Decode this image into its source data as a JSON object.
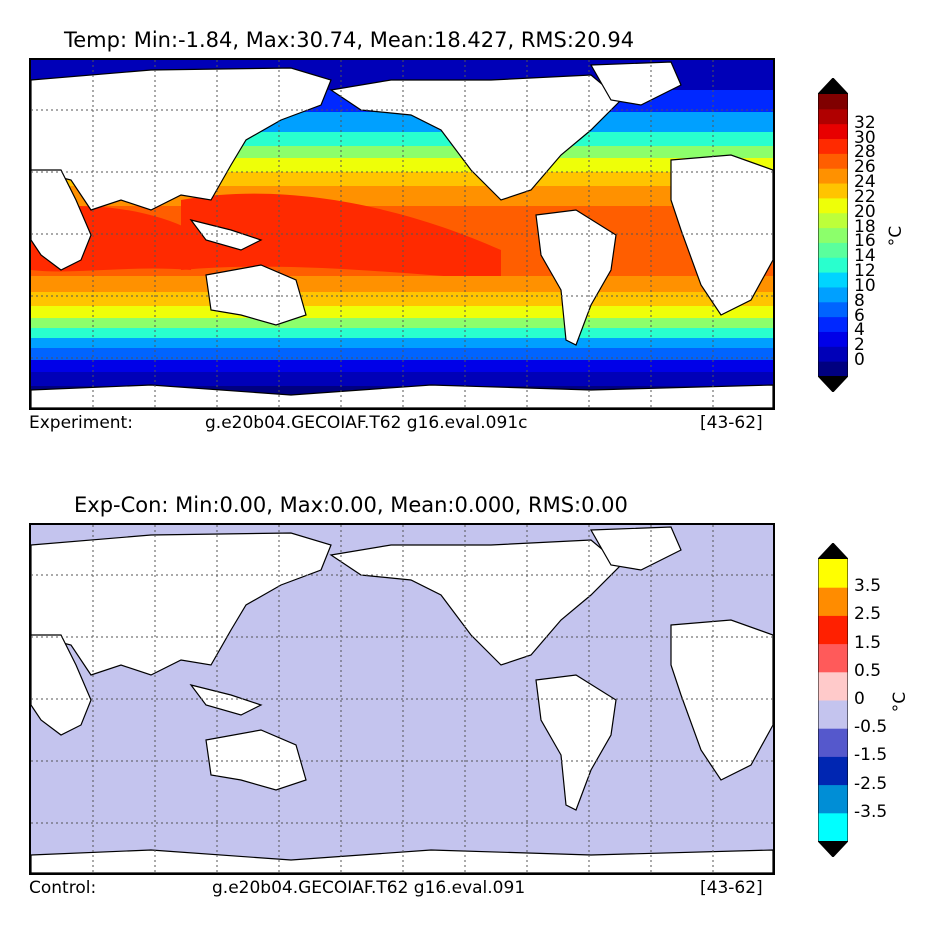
{
  "panels": [
    {
      "id": "temp",
      "title": "Temp: Min:-1.84, Max:30.74, Mean:18.427, RMS:20.94",
      "caption_left": "Experiment:",
      "caption_case": "g.e20b04.GECOIAF.T62 g16.eval.091c",
      "caption_years": "[43-62]",
      "unit": "°C",
      "colorbar": {
        "colors": [
          "#000080",
          "#0000b8",
          "#0000e8",
          "#0028ff",
          "#0064ff",
          "#00a0ff",
          "#00d4ff",
          "#29ffce",
          "#5aff9d",
          "#8cff6b",
          "#bdff3a",
          "#eeff08",
          "#ffc400",
          "#ff9100",
          "#ff5e00",
          "#ff2a00",
          "#e80000",
          "#b00000",
          "#800000"
        ],
        "under_color": "#000000",
        "over_color": "#000000",
        "tick_labels": [
          "0",
          "2",
          "4",
          "6",
          "8",
          "10",
          "12",
          "14",
          "16",
          "18",
          "20",
          "22",
          "24",
          "26",
          "28",
          "30",
          "32"
        ]
      }
    },
    {
      "id": "diff",
      "title": "Exp-Con: Min:0.00, Max:0.00, Mean:0.000, RMS:0.00",
      "caption_left": "Control:",
      "caption_case": "g.e20b04.GECOIAF.T62 g16.eval.091",
      "caption_years": "[43-62]",
      "unit": "°C",
      "fill_color": "#c4c4ee",
      "colorbar": {
        "colors": [
          "#00ffff",
          "#008ed6",
          "#0026b2",
          "#5558cc",
          "#c4c4ee",
          "#ffcaca",
          "#ff5a5a",
          "#ff2000",
          "#ff8c00",
          "#ffff00"
        ],
        "under_color": "#000000",
        "over_color": "#000000",
        "tick_labels": [
          "-3.5",
          "-2.5",
          "-1.5",
          "-0.5",
          "0",
          "0.5",
          "1.5",
          "2.5",
          "3.5"
        ]
      }
    }
  ]
}
